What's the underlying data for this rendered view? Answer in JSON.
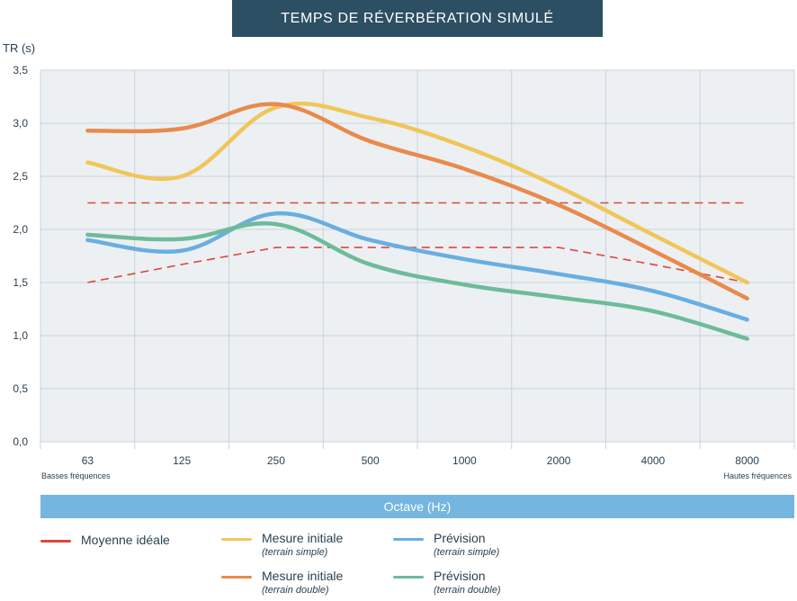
{
  "chart_data": {
    "type": "line",
    "title": "TEMPS DE RÉVERBÉRATION SIMULÉ",
    "ylabel": "TR (s)",
    "xlabel": "Octave (Hz)",
    "ylim": [
      0,
      3.5
    ],
    "yticks": [
      "0,0",
      "0,5",
      "1,0",
      "1,5",
      "2,0",
      "2,5",
      "3,0",
      "3,5"
    ],
    "ytick_values": [
      0,
      0.5,
      1.0,
      1.5,
      2.0,
      2.5,
      3.0,
      3.5
    ],
    "categories": [
      "63",
      "125",
      "250",
      "500",
      "1000",
      "2000",
      "4000",
      "8000"
    ],
    "x_sub_left": "Basses fréquences",
    "x_sub_right": "Hautes fréquences",
    "grid": true,
    "series": [
      {
        "name": "Moyenne idéale",
        "sub": "",
        "kind": "ideal-upper",
        "color": "#d9483b",
        "dashed": true,
        "values": [
          2.25,
          2.25,
          2.25,
          2.25,
          2.25,
          2.25,
          2.25,
          2.25
        ]
      },
      {
        "name": "Moyenne idéale",
        "sub": "",
        "kind": "ideal-lower",
        "color": "#d9483b",
        "dashed": true,
        "values": [
          1.5,
          1.67,
          1.83,
          1.83,
          1.83,
          1.83,
          1.67,
          1.5
        ]
      },
      {
        "name": "Mesure initiale",
        "sub": "(terrain simple)",
        "kind": "mesure-simple",
        "color": "#f0c65a",
        "dashed": false,
        "values": [
          2.63,
          2.5,
          3.15,
          3.05,
          2.78,
          2.4,
          1.95,
          1.5
        ]
      },
      {
        "name": "Mesure initiale",
        "sub": "(terrain double)",
        "kind": "mesure-double",
        "color": "#e98a4c",
        "dashed": false,
        "values": [
          2.93,
          2.95,
          3.18,
          2.83,
          2.57,
          2.23,
          1.8,
          1.35
        ]
      },
      {
        "name": "Prévision",
        "sub": "(terrain simple)",
        "kind": "prevision-simple",
        "color": "#69aee0",
        "dashed": false,
        "values": [
          1.9,
          1.8,
          2.15,
          1.9,
          1.72,
          1.58,
          1.42,
          1.15
        ]
      },
      {
        "name": "Prévision",
        "sub": "(terrain double)",
        "kind": "prevision-double",
        "color": "#6dbb9a",
        "dashed": false,
        "values": [
          1.95,
          1.91,
          2.05,
          1.67,
          1.48,
          1.36,
          1.23,
          0.97
        ]
      }
    ]
  },
  "legend": [
    {
      "label": "Moyenne idéale",
      "sub": "",
      "color": "#d9483b"
    },
    {
      "label": "Mesure initiale",
      "sub": "(terrain simple)",
      "color": "#f0c65a"
    },
    {
      "label": "Prévision",
      "sub": "(terrain simple)",
      "color": "#69aee0"
    },
    {
      "label": "Mesure initiale",
      "sub": "(terrain double)",
      "color": "#e98a4c"
    },
    {
      "label": "Prévision",
      "sub": "(terrain double)",
      "color": "#6dbb9a"
    }
  ]
}
